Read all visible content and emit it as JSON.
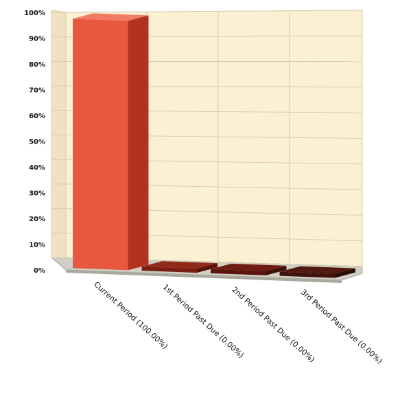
{
  "chart_data": {
    "type": "bar",
    "style": "3d-column",
    "categories": [
      "Current Period (100.00%)",
      "1st Period Past Due (0.00%)",
      "2nd Period Past Due (0.00%)",
      "3rd Period Past Due (0.00%)"
    ],
    "values": [
      100,
      0,
      0,
      0
    ],
    "y_tick_labels": [
      "0%",
      "10%",
      "20%",
      "30%",
      "40%",
      "50%",
      "60%",
      "70%",
      "80%",
      "90%",
      "100%"
    ],
    "ylim": [
      0,
      100
    ],
    "title": "",
    "xlabel": "",
    "ylabel": "",
    "grid": true,
    "legend": "none",
    "colors": {
      "bars": [
        "#e8573f",
        "#7a1e12",
        "#5c150d",
        "#3f120d"
      ],
      "bar_sides": [
        "#b3311f",
        "#5a130a",
        "#420e08",
        "#2c0b07"
      ],
      "bar_tops": [
        "#f07a62",
        "#922a1c",
        "#6e1d13",
        "#521a12"
      ],
      "back_wall": "#fbf0d2",
      "side_wall": "#efe2c0",
      "floor": "#cfcfc5",
      "floor_edge": "#a8a89c",
      "grid": "#d9ccb0"
    }
  }
}
